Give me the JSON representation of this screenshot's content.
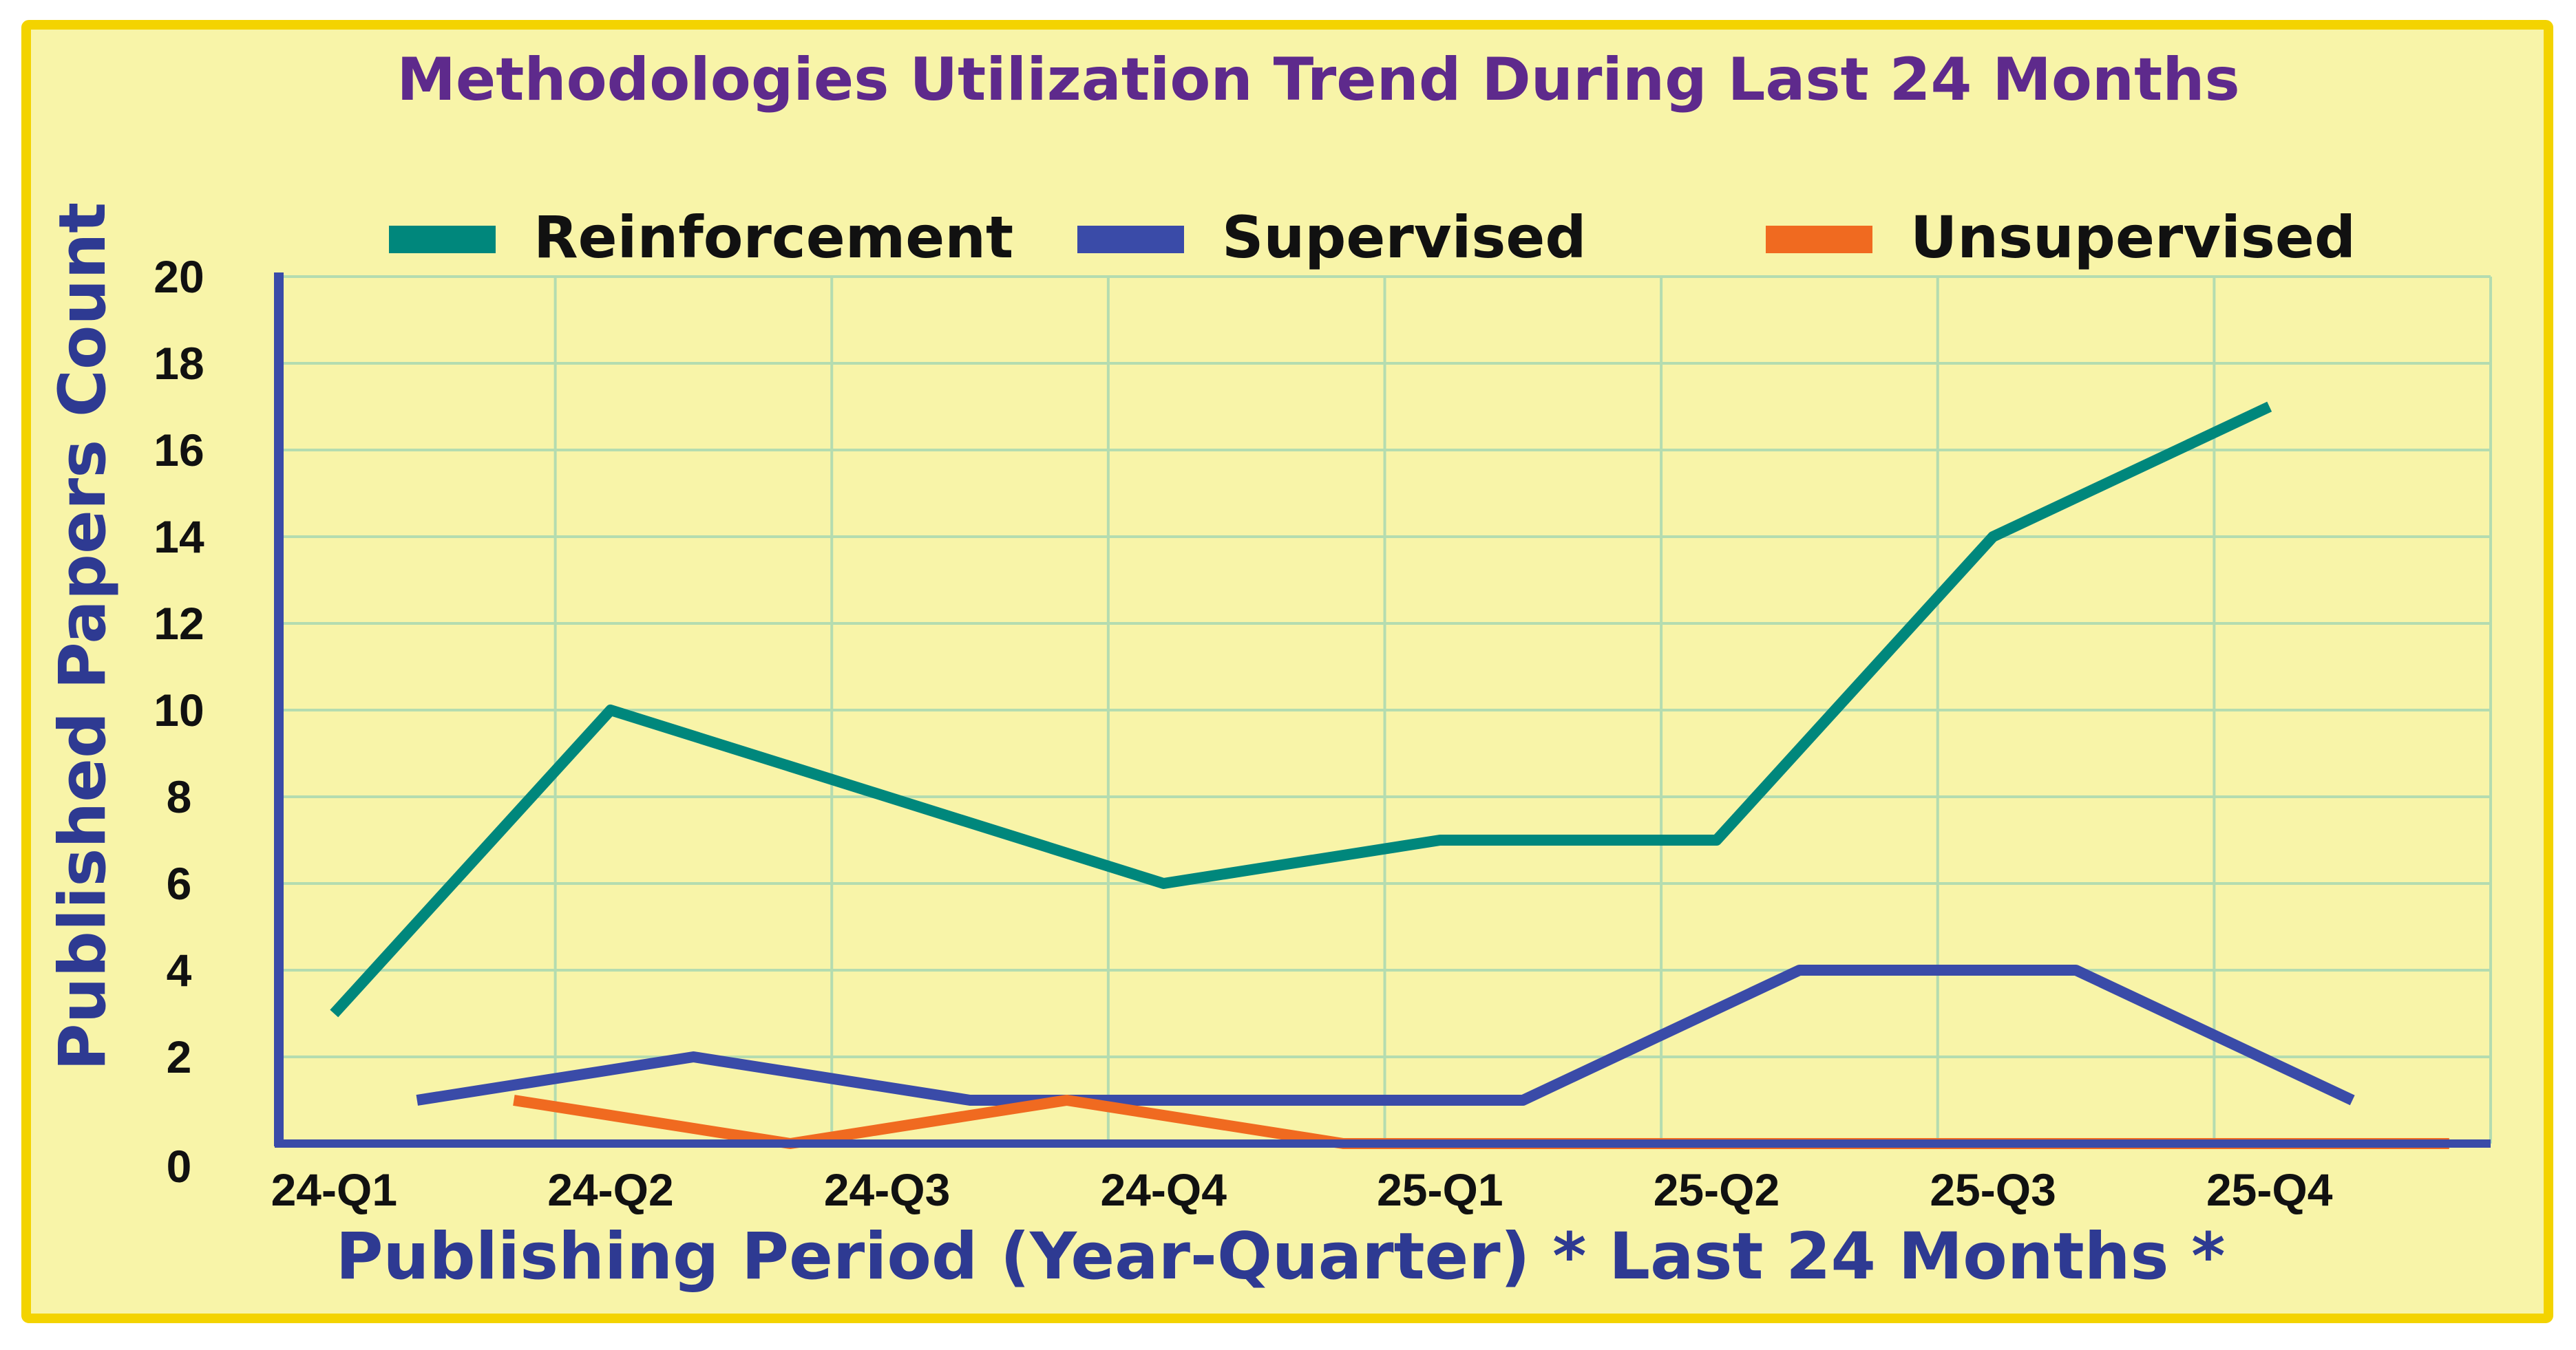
{
  "chart_data": {
    "type": "line",
    "title": "Methodologies Utilization Trend During Last 24 Months",
    "xlabel": "Publishing Period (Year-Quarter) * Last 24 Months *",
    "ylabel": "Published Papers Count",
    "categories": [
      "24-Q1",
      "24-Q2",
      "24-Q3",
      "24-Q4",
      "25-Q1",
      "25-Q2",
      "25-Q3",
      "25-Q4"
    ],
    "y_ticks": [
      0,
      2,
      4,
      6,
      8,
      10,
      12,
      14,
      16,
      18,
      20
    ],
    "ylim": [
      0,
      20
    ],
    "x_range": [
      0,
      8
    ],
    "grid": true,
    "legend_position": "top",
    "series": [
      {
        "name": "Reinforcement",
        "color": "#00877C",
        "x": [
          0.2,
          1.2,
          3.2,
          4.2,
          5.2,
          6.2,
          7.2
        ],
        "y": [
          3,
          10,
          6,
          7,
          7,
          14,
          17
        ]
      },
      {
        "name": "Supervised",
        "color": "#3A4BA8",
        "x": [
          0.5,
          1.5,
          2.5,
          3.5,
          4.5,
          5.5,
          6.5,
          7.5
        ],
        "y": [
          1,
          2,
          1,
          1,
          1,
          4,
          4,
          1
        ]
      },
      {
        "name": "Unsupervised",
        "color": "#F06A20",
        "x": [
          0.85,
          1.85,
          2.85,
          3.85,
          4.85,
          5.85,
          6.85,
          7.85
        ],
        "y": [
          1,
          0,
          1,
          0,
          0,
          0,
          0,
          0
        ]
      }
    ],
    "colors": {
      "background": "#F8F4A8",
      "border": "#F3D300",
      "grid": "#B4DCB0",
      "axis": "#3A4BA8",
      "title": "#5E2A8C",
      "tick": "#111111",
      "axis_title": "#2E3A92"
    }
  }
}
